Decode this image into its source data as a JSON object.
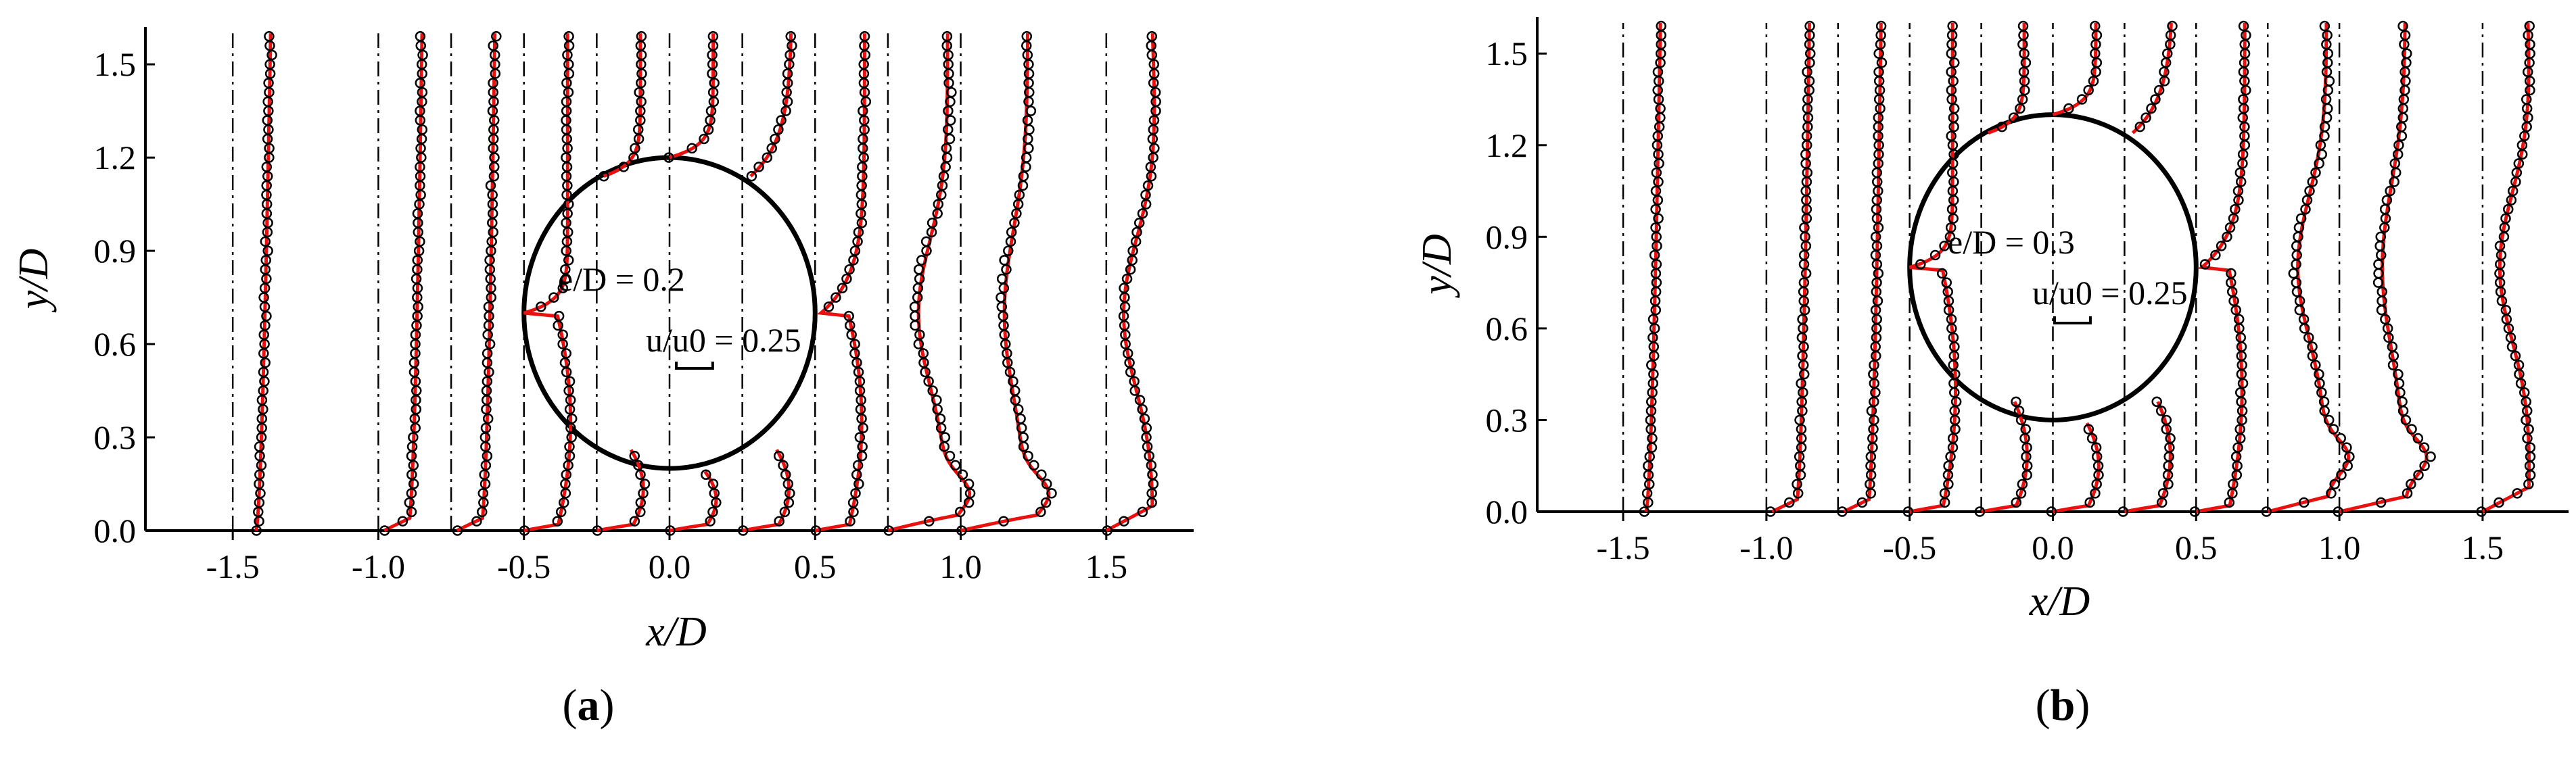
{
  "chart_data": [
    {
      "type": "line",
      "panel_label": "a",
      "xlabel": "x/D",
      "ylabel": "y/D",
      "xlim": [
        -1.8,
        1.8
      ],
      "ylim": [
        0.0,
        1.62
      ],
      "xticks": [
        {
          "value": -1.5,
          "label": "-1.5"
        },
        {
          "value": -1.0,
          "label": "-1.0"
        },
        {
          "value": -0.5,
          "label": "-0.5"
        },
        {
          "value": 0.0,
          "label": "0.0"
        },
        {
          "value": 0.5,
          "label": "0.5"
        },
        {
          "value": 1.0,
          "label": "1.0"
        },
        {
          "value": 1.5,
          "label": "1.5"
        }
      ],
      "yticks": [
        {
          "value": 0.0,
          "label": "0.0"
        },
        {
          "value": 0.3,
          "label": "0.3"
        },
        {
          "value": 0.6,
          "label": "0.6"
        },
        {
          "value": 0.9,
          "label": "0.9"
        },
        {
          "value": 1.2,
          "label": "1.2"
        },
        {
          "value": 1.5,
          "label": "1.5"
        }
      ],
      "annotation_gap": "e/D = 0.2",
      "annotation_scale": "u/u0 = 0.25",
      "scale_bar_length": 0.25,
      "gap_ratio": 0.2,
      "cylinder": {
        "cx": 0.0,
        "cy": 0.7,
        "r": 0.5
      },
      "stations": [
        -1.5,
        -1.0,
        -0.75,
        -0.5,
        -0.25,
        0.0,
        0.25,
        0.5,
        0.75,
        1.0,
        1.5
      ],
      "series": [
        {
          "type": "line",
          "color": "#e8110f"
        },
        {
          "type": "scatter",
          "color": "#000000"
        }
      ]
    },
    {
      "type": "line",
      "panel_label": "b",
      "xlabel": "x/D",
      "ylabel": "y/D",
      "xlim": [
        -1.8,
        1.8
      ],
      "ylim": [
        0.0,
        1.62
      ],
      "xticks": [
        {
          "value": -1.5,
          "label": "-1.5"
        },
        {
          "value": -1.0,
          "label": "-1.0"
        },
        {
          "value": -0.5,
          "label": "-0.5"
        },
        {
          "value": 0.0,
          "label": "0.0"
        },
        {
          "value": 0.5,
          "label": "0.5"
        },
        {
          "value": 1.0,
          "label": "1.0"
        },
        {
          "value": 1.5,
          "label": "1.5"
        }
      ],
      "yticks": [
        {
          "value": 0.0,
          "label": "0.0"
        },
        {
          "value": 0.3,
          "label": "0.3"
        },
        {
          "value": 0.6,
          "label": "0.6"
        },
        {
          "value": 0.9,
          "label": "0.9"
        },
        {
          "value": 1.2,
          "label": "1.2"
        },
        {
          "value": 1.5,
          "label": "1.5"
        }
      ],
      "annotation_gap": "e/D = 0.3",
      "annotation_scale": "u/u0 = 0.25",
      "scale_bar_length": 0.25,
      "gap_ratio": 0.3,
      "cylinder": {
        "cx": 0.0,
        "cy": 0.8,
        "r": 0.5
      },
      "stations": [
        -1.5,
        -1.0,
        -0.75,
        -0.5,
        -0.25,
        0.0,
        0.25,
        0.5,
        0.75,
        1.0,
        1.5
      ],
      "series": [
        {
          "type": "line",
          "color": "#e8110f"
        },
        {
          "type": "scatter",
          "color": "#000000"
        }
      ]
    }
  ]
}
